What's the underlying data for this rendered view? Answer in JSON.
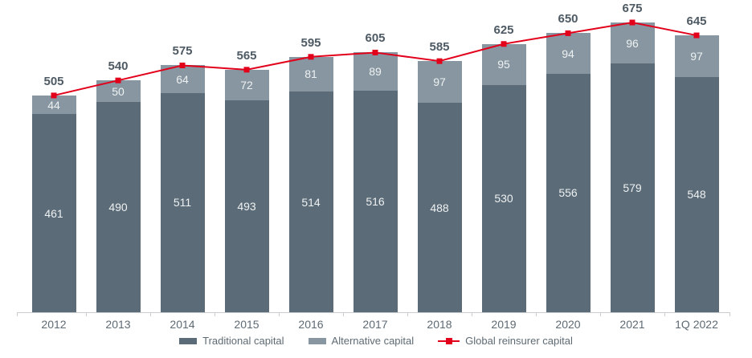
{
  "chart_data": {
    "type": "bar",
    "stacked": true,
    "title": "",
    "xlabel": "",
    "ylabel": "",
    "grid": false,
    "legend_position": "bottom",
    "ylim": [
      0,
      700
    ],
    "categories": [
      "2012",
      "2013",
      "2014",
      "2015",
      "2016",
      "2017",
      "2018",
      "2019",
      "2020",
      "2021",
      "1Q 2022"
    ],
    "series": [
      {
        "name": "Traditional capital",
        "type": "bar",
        "color": "#5b6b78",
        "values": [
          461,
          490,
          511,
          493,
          514,
          516,
          488,
          530,
          556,
          579,
          548
        ]
      },
      {
        "name": "Alternative capital",
        "type": "bar",
        "color": "#8796a0",
        "values": [
          44,
          50,
          64,
          72,
          81,
          89,
          97,
          95,
          94,
          96,
          97
        ]
      },
      {
        "name": "Global reinsurer capital",
        "type": "line",
        "color": "#e2001b",
        "values": [
          505,
          540,
          575,
          565,
          595,
          605,
          585,
          625,
          650,
          675,
          645
        ]
      }
    ],
    "totals": [
      505,
      540,
      575,
      565,
      595,
      605,
      585,
      625,
      650,
      675,
      645
    ],
    "colors": {
      "traditional": "#5b6b78",
      "alternative": "#8796a0",
      "line": "#e2001b",
      "total_label": "#4e5a64",
      "axis": "#c8cccf",
      "axis_text": "#5e6a73",
      "bar_text": "#eef1f2"
    }
  }
}
